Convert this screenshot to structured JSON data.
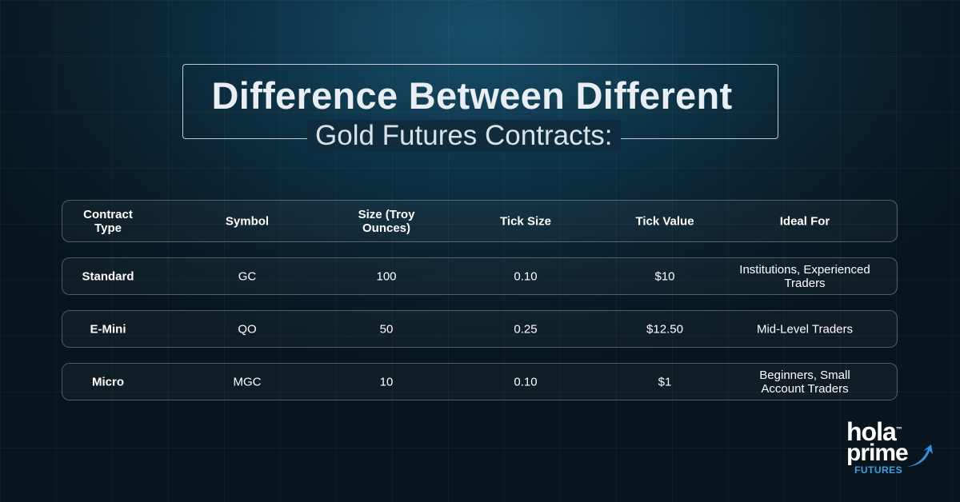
{
  "header": {
    "title": "Difference Between Different",
    "subtitle": "Gold Futures Contracts:"
  },
  "table": {
    "columns": [
      "Contract Type",
      "Symbol",
      "Size (Troy Ounces)",
      "Tick Size",
      "Tick Value",
      "Ideal For"
    ],
    "rows": [
      [
        "Standard",
        "GC",
        "100",
        "0.10",
        "$10",
        "Institutions, Experienced Traders"
      ],
      [
        "E-Mini",
        "QO",
        "50",
        "0.25",
        "$12.50",
        "Mid-Level Traders"
      ],
      [
        "Micro",
        "MGC",
        "10",
        "0.10",
        "$1",
        "Beginners, Small Account Traders"
      ]
    ]
  },
  "logo": {
    "line1": "hola",
    "tm": "™",
    "line2": "prime",
    "line3": "FUTURES"
  }
}
